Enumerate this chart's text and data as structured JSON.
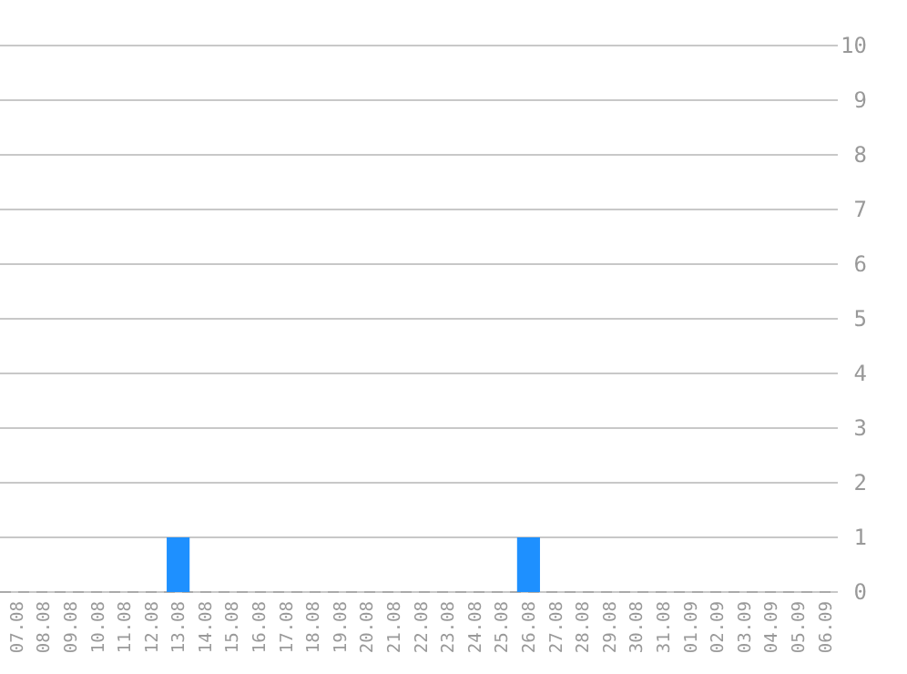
{
  "chart_data": {
    "type": "bar",
    "categories": [
      "07.08",
      "08.08",
      "09.08",
      "10.08",
      "11.08",
      "12.08",
      "13.08",
      "14.08",
      "15.08",
      "16.08",
      "17.08",
      "18.08",
      "19.08",
      "20.08",
      "21.08",
      "22.08",
      "23.08",
      "24.08",
      "25.08",
      "26.08",
      "27.08",
      "28.08",
      "29.08",
      "30.08",
      "31.08",
      "01.09",
      "02.09",
      "03.09",
      "04.09",
      "05.09",
      "06.09"
    ],
    "values": [
      0,
      0,
      0,
      0,
      0,
      0,
      1,
      0,
      0,
      0,
      0,
      0,
      0,
      0,
      0,
      0,
      0,
      0,
      0,
      1,
      0,
      0,
      0,
      0,
      0,
      0,
      0,
      0,
      0,
      0,
      0
    ],
    "color": "#1e90ff",
    "ylim": [
      0,
      10
    ],
    "yticks": [
      0,
      1,
      2,
      3,
      4,
      5,
      6,
      7,
      8,
      9,
      10
    ],
    "grid": "y"
  }
}
